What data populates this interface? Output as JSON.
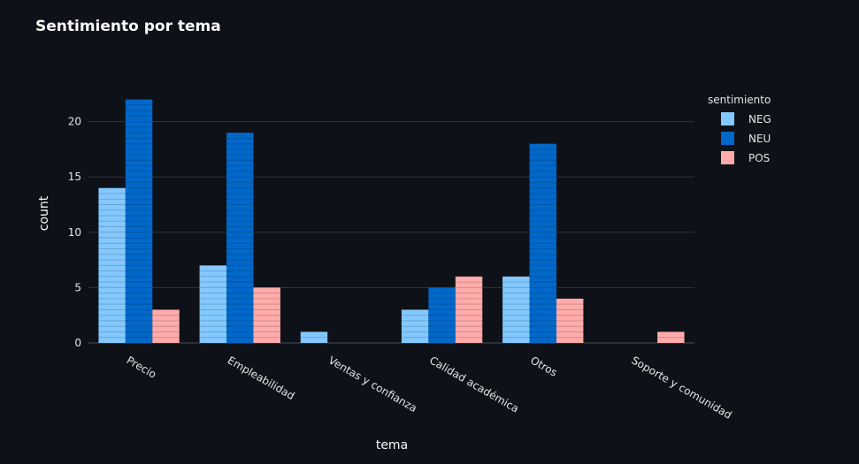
{
  "chart_data": {
    "type": "bar",
    "title": "Sentimiento por tema",
    "xlabel": "tema",
    "ylabel": "count",
    "categories": [
      "Precio",
      "Empleabilidad",
      "Ventas y confianza",
      "Calidad académica",
      "Otros",
      "Soporte y comunidad"
    ],
    "series": [
      {
        "name": "NEG",
        "color": "#83c9ff",
        "values": [
          14,
          7,
          1,
          3,
          6,
          0
        ]
      },
      {
        "name": "NEU",
        "color": "#0068c9",
        "values": [
          22,
          19,
          0,
          5,
          18,
          0
        ]
      },
      {
        "name": "POS",
        "color": "#ffabab",
        "values": [
          3,
          5,
          0,
          6,
          4,
          1
        ]
      }
    ],
    "ylim": [
      0,
      25
    ],
    "yticks": [
      0,
      5,
      10,
      15,
      20
    ],
    "grid": true,
    "legend_title": "sentimiento",
    "legend_position": "right",
    "colors": {
      "background": "#0e1117",
      "grid": "#31333f",
      "text": "#fafafa"
    }
  }
}
